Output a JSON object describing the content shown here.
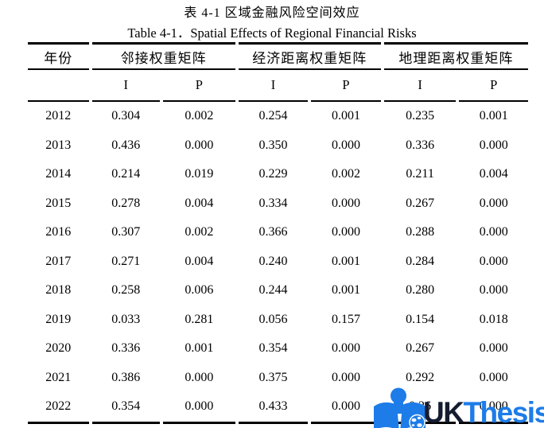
{
  "titles": {
    "zh": "表  4-1  区域金融风险空间效应",
    "en": "Table 4-1．Spatial Effects of Regional Financial Risks"
  },
  "table": {
    "col_year": "年份",
    "groups": [
      {
        "label": "邻接权重矩阵"
      },
      {
        "label": "经济距离权重矩阵"
      },
      {
        "label": "地理距离权重矩阵"
      }
    ],
    "subheaders": [
      "I",
      "P",
      "I",
      "P",
      "I",
      "P"
    ],
    "rows": [
      {
        "year": "2012",
        "values": [
          "0.304",
          "0.002",
          "0.254",
          "0.001",
          "0.235",
          "0.001"
        ]
      },
      {
        "year": "2013",
        "values": [
          "0.436",
          "0.000",
          "0.350",
          "0.000",
          "0.336",
          "0.000"
        ]
      },
      {
        "year": "2014",
        "values": [
          "0.214",
          "0.019",
          "0.229",
          "0.002",
          "0.211",
          "0.004"
        ]
      },
      {
        "year": "2015",
        "values": [
          "0.278",
          "0.004",
          "0.334",
          "0.000",
          "0.267",
          "0.000"
        ]
      },
      {
        "year": "2016",
        "values": [
          "0.307",
          "0.002",
          "0.366",
          "0.000",
          "0.288",
          "0.000"
        ]
      },
      {
        "year": "2017",
        "values": [
          "0.271",
          "0.004",
          "0.240",
          "0.001",
          "0.284",
          "0.000"
        ]
      },
      {
        "year": "2018",
        "values": [
          "0.258",
          "0.006",
          "0.244",
          "0.001",
          "0.280",
          "0.000"
        ]
      },
      {
        "year": "2019",
        "values": [
          "0.033",
          "0.281",
          "0.056",
          "0.157",
          "0.154",
          "0.018"
        ]
      },
      {
        "year": "2020",
        "values": [
          "0.336",
          "0.001",
          "0.354",
          "0.000",
          "0.267",
          "0.000"
        ]
      },
      {
        "year": "2021",
        "values": [
          "0.386",
          "0.000",
          "0.375",
          "0.000",
          "0.292",
          "0.000"
        ]
      },
      {
        "year": "2022",
        "values": [
          "0.354",
          "0.000",
          "0.433",
          "0.000",
          "0.26",
          "0.000"
        ]
      }
    ]
  },
  "watermark": {
    "text_primary": "UK",
    "text_secondary": "Thesis",
    "icon": "reader-book-globe-icon",
    "colors": {
      "blue": "#1d7ce8",
      "dark_navy": "#141c30",
      "globe_land": "#f2f7fd"
    }
  }
}
